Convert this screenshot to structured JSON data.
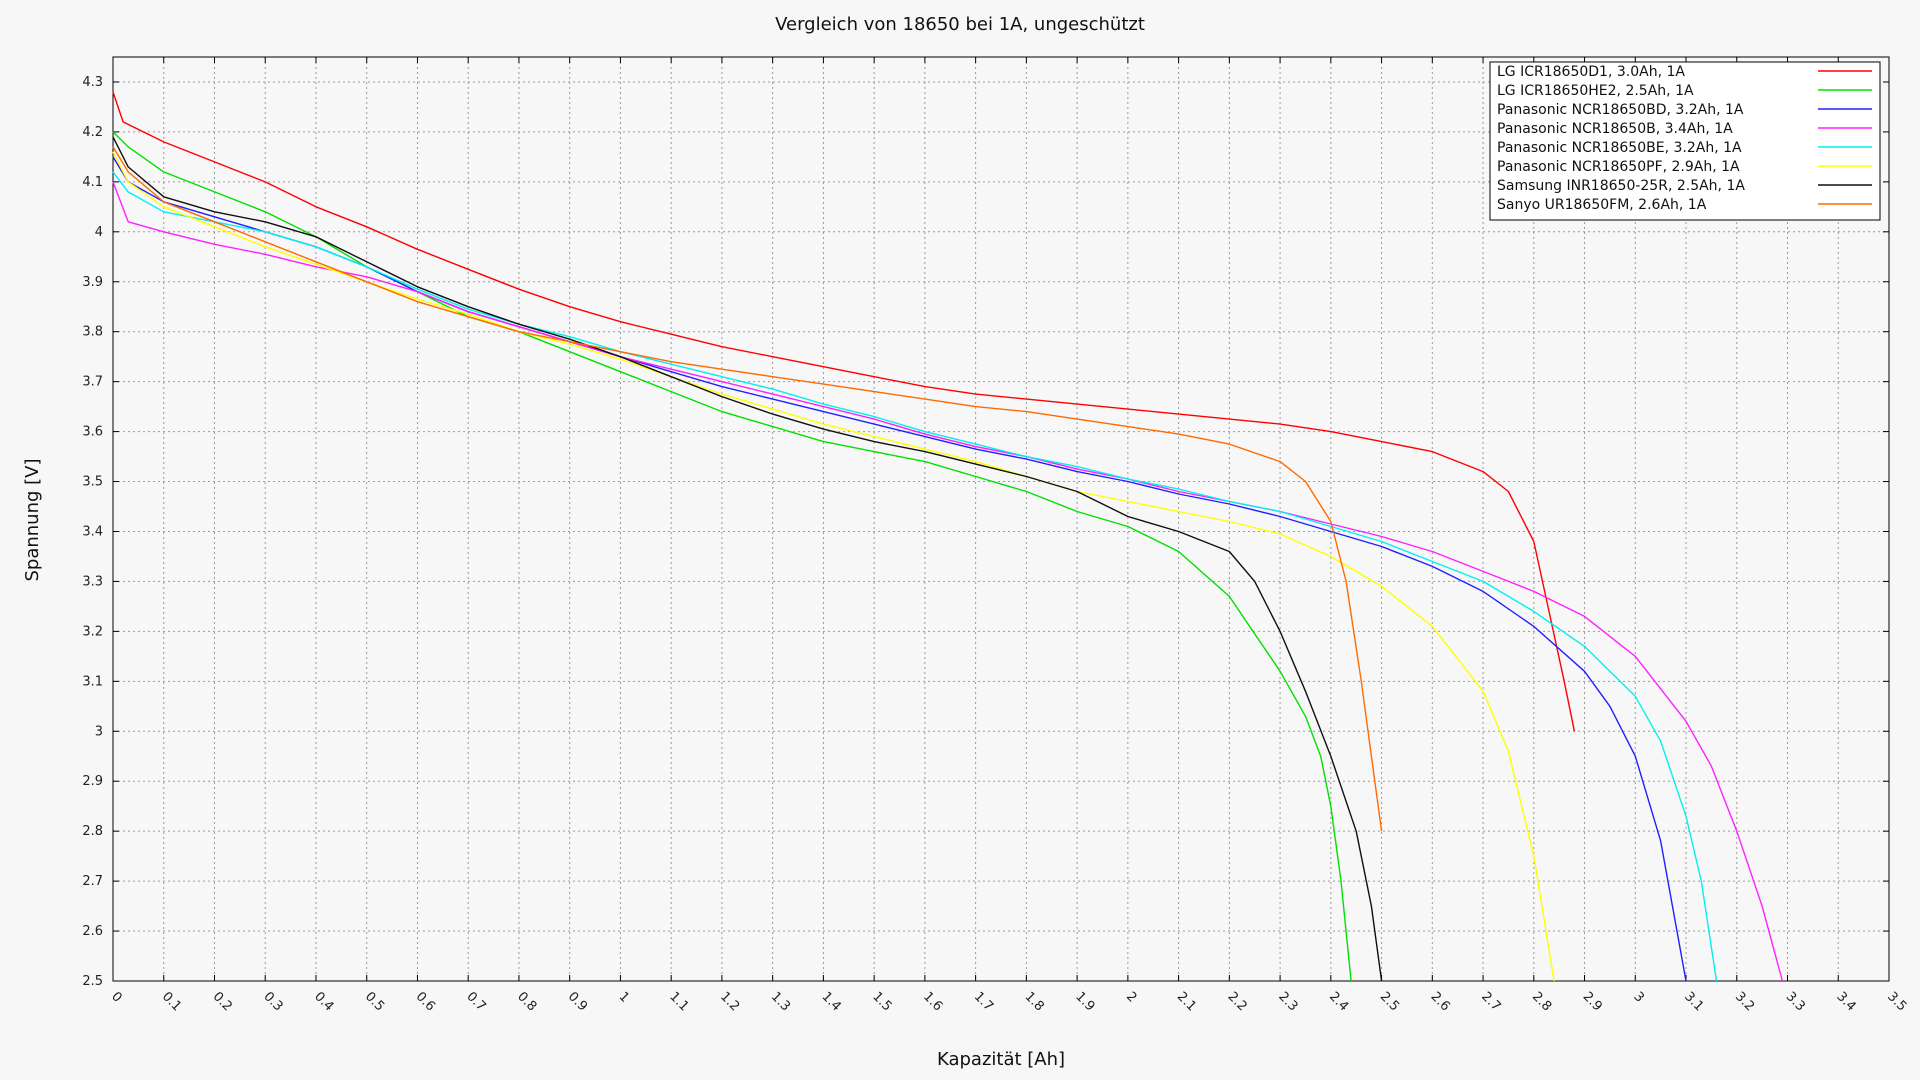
{
  "chart_data": {
    "type": "line",
    "title": "Vergleich von 18650 bei 1A, ungeschützt",
    "xlabel": "Kapazität [Ah]",
    "ylabel": "Spannung [V]",
    "xlim": [
      0,
      3.5
    ],
    "ylim": [
      2.5,
      4.35
    ],
    "x_ticks": [
      "0",
      "0.1",
      "0.2",
      "0.3",
      "0.4",
      "0.5",
      "0.6",
      "0.7",
      "0.8",
      "0.9",
      "1",
      "1.1",
      "1.2",
      "1.3",
      "1.4",
      "1.5",
      "1.6",
      "1.7",
      "1.8",
      "1.9",
      "2",
      "2.1",
      "2.2",
      "2.3",
      "2.4",
      "2.5",
      "2.6",
      "2.7",
      "2.8",
      "2.9",
      "3",
      "3.1",
      "3.2",
      "3.3",
      "3.4",
      "3.5"
    ],
    "y_ticks": [
      "2.5",
      "2.6",
      "2.7",
      "2.8",
      "2.9",
      "3",
      "3.1",
      "3.2",
      "3.3",
      "3.4",
      "3.5",
      "3.6",
      "3.7",
      "3.8",
      "3.9",
      "4",
      "4.1",
      "4.2",
      "4.3"
    ],
    "grid": true,
    "legend_position": "top-right",
    "series": [
      {
        "name": "LG ICR18650D1, 3.0Ah, 1A",
        "color": "#ff0000",
        "points": [
          [
            0,
            4.28
          ],
          [
            0.02,
            4.22
          ],
          [
            0.1,
            4.18
          ],
          [
            0.2,
            4.14
          ],
          [
            0.3,
            4.1
          ],
          [
            0.4,
            4.05
          ],
          [
            0.5,
            4.01
          ],
          [
            0.6,
            3.965
          ],
          [
            0.7,
            3.925
          ],
          [
            0.8,
            3.885
          ],
          [
            0.9,
            3.85
          ],
          [
            1.0,
            3.82
          ],
          [
            1.1,
            3.795
          ],
          [
            1.2,
            3.77
          ],
          [
            1.3,
            3.75
          ],
          [
            1.4,
            3.73
          ],
          [
            1.5,
            3.71
          ],
          [
            1.6,
            3.69
          ],
          [
            1.7,
            3.675
          ],
          [
            1.8,
            3.665
          ],
          [
            1.9,
            3.655
          ],
          [
            2.0,
            3.645
          ],
          [
            2.1,
            3.635
          ],
          [
            2.2,
            3.625
          ],
          [
            2.3,
            3.615
          ],
          [
            2.4,
            3.6
          ],
          [
            2.5,
            3.58
          ],
          [
            2.6,
            3.56
          ],
          [
            2.7,
            3.52
          ],
          [
            2.75,
            3.48
          ],
          [
            2.8,
            3.38
          ],
          [
            2.83,
            3.24
          ],
          [
            2.86,
            3.1
          ],
          [
            2.88,
            3.0
          ]
        ]
      },
      {
        "name": "LG ICR18650HE2, 2.5Ah, 1A",
        "color": "#00e000",
        "points": [
          [
            0,
            4.2
          ],
          [
            0.03,
            4.17
          ],
          [
            0.1,
            4.12
          ],
          [
            0.2,
            4.08
          ],
          [
            0.3,
            4.04
          ],
          [
            0.4,
            3.99
          ],
          [
            0.5,
            3.93
          ],
          [
            0.6,
            3.88
          ],
          [
            0.7,
            3.83
          ],
          [
            0.8,
            3.8
          ],
          [
            0.9,
            3.76
          ],
          [
            1.0,
            3.72
          ],
          [
            1.1,
            3.68
          ],
          [
            1.2,
            3.64
          ],
          [
            1.3,
            3.61
          ],
          [
            1.4,
            3.58
          ],
          [
            1.5,
            3.56
          ],
          [
            1.6,
            3.54
          ],
          [
            1.7,
            3.51
          ],
          [
            1.8,
            3.48
          ],
          [
            1.9,
            3.44
          ],
          [
            2.0,
            3.41
          ],
          [
            2.1,
            3.36
          ],
          [
            2.2,
            3.27
          ],
          [
            2.3,
            3.12
          ],
          [
            2.35,
            3.03
          ],
          [
            2.38,
            2.95
          ],
          [
            2.4,
            2.85
          ],
          [
            2.42,
            2.7
          ],
          [
            2.44,
            2.5
          ]
        ]
      },
      {
        "name": "Panasonic NCR18650BD, 3.2Ah, 1A",
        "color": "#2020ff",
        "points": [
          [
            0,
            4.15
          ],
          [
            0.03,
            4.1
          ],
          [
            0.1,
            4.06
          ],
          [
            0.2,
            4.03
          ],
          [
            0.3,
            4.0
          ],
          [
            0.4,
            3.97
          ],
          [
            0.5,
            3.93
          ],
          [
            0.6,
            3.88
          ],
          [
            0.7,
            3.84
          ],
          [
            0.8,
            3.81
          ],
          [
            0.9,
            3.78
          ],
          [
            1.0,
            3.75
          ],
          [
            1.1,
            3.72
          ],
          [
            1.2,
            3.69
          ],
          [
            1.3,
            3.665
          ],
          [
            1.4,
            3.64
          ],
          [
            1.5,
            3.615
          ],
          [
            1.6,
            3.59
          ],
          [
            1.7,
            3.565
          ],
          [
            1.8,
            3.545
          ],
          [
            1.9,
            3.52
          ],
          [
            2.0,
            3.5
          ],
          [
            2.1,
            3.475
          ],
          [
            2.2,
            3.455
          ],
          [
            2.3,
            3.43
          ],
          [
            2.4,
            3.4
          ],
          [
            2.5,
            3.37
          ],
          [
            2.6,
            3.33
          ],
          [
            2.7,
            3.28
          ],
          [
            2.8,
            3.21
          ],
          [
            2.9,
            3.12
          ],
          [
            2.95,
            3.05
          ],
          [
            3.0,
            2.95
          ],
          [
            3.05,
            2.78
          ],
          [
            3.1,
            2.5
          ]
        ]
      },
      {
        "name": "Panasonic NCR18650B, 3.4Ah, 1A",
        "color": "#ff20ff",
        "points": [
          [
            0,
            4.1
          ],
          [
            0.03,
            4.02
          ],
          [
            0.1,
            4.0
          ],
          [
            0.2,
            3.975
          ],
          [
            0.3,
            3.955
          ],
          [
            0.4,
            3.93
          ],
          [
            0.5,
            3.91
          ],
          [
            0.6,
            3.88
          ],
          [
            0.7,
            3.84
          ],
          [
            0.8,
            3.81
          ],
          [
            0.9,
            3.78
          ],
          [
            1.0,
            3.75
          ],
          [
            1.1,
            3.725
          ],
          [
            1.2,
            3.7
          ],
          [
            1.3,
            3.675
          ],
          [
            1.4,
            3.65
          ],
          [
            1.5,
            3.625
          ],
          [
            1.6,
            3.595
          ],
          [
            1.7,
            3.57
          ],
          [
            1.8,
            3.55
          ],
          [
            1.9,
            3.525
          ],
          [
            2.0,
            3.505
          ],
          [
            2.1,
            3.48
          ],
          [
            2.2,
            3.46
          ],
          [
            2.3,
            3.44
          ],
          [
            2.4,
            3.415
          ],
          [
            2.5,
            3.39
          ],
          [
            2.6,
            3.36
          ],
          [
            2.7,
            3.32
          ],
          [
            2.8,
            3.28
          ],
          [
            2.9,
            3.23
          ],
          [
            3.0,
            3.15
          ],
          [
            3.1,
            3.02
          ],
          [
            3.15,
            2.93
          ],
          [
            3.2,
            2.8
          ],
          [
            3.25,
            2.65
          ],
          [
            3.29,
            2.5
          ]
        ]
      },
      {
        "name": "Panasonic NCR18650BE, 3.2Ah, 1A",
        "color": "#00f0f0",
        "points": [
          [
            0,
            4.12
          ],
          [
            0.03,
            4.08
          ],
          [
            0.1,
            4.04
          ],
          [
            0.2,
            4.02
          ],
          [
            0.3,
            4.0
          ],
          [
            0.4,
            3.97
          ],
          [
            0.5,
            3.93
          ],
          [
            0.6,
            3.885
          ],
          [
            0.7,
            3.845
          ],
          [
            0.8,
            3.815
          ],
          [
            0.9,
            3.79
          ],
          [
            1.0,
            3.76
          ],
          [
            1.1,
            3.735
          ],
          [
            1.2,
            3.71
          ],
          [
            1.3,
            3.685
          ],
          [
            1.4,
            3.655
          ],
          [
            1.5,
            3.63
          ],
          [
            1.6,
            3.6
          ],
          [
            1.7,
            3.575
          ],
          [
            1.8,
            3.55
          ],
          [
            1.9,
            3.53
          ],
          [
            2.0,
            3.505
          ],
          [
            2.1,
            3.485
          ],
          [
            2.2,
            3.46
          ],
          [
            2.3,
            3.44
          ],
          [
            2.4,
            3.41
          ],
          [
            2.5,
            3.38
          ],
          [
            2.6,
            3.34
          ],
          [
            2.7,
            3.3
          ],
          [
            2.8,
            3.24
          ],
          [
            2.9,
            3.17
          ],
          [
            3.0,
            3.07
          ],
          [
            3.05,
            2.98
          ],
          [
            3.1,
            2.83
          ],
          [
            3.13,
            2.7
          ],
          [
            3.16,
            2.5
          ]
        ]
      },
      {
        "name": "Panasonic NCR18650PF, 2.9Ah, 1A",
        "color": "#ffff00",
        "points": [
          [
            0,
            4.16
          ],
          [
            0.03,
            4.1
          ],
          [
            0.1,
            4.05
          ],
          [
            0.2,
            4.01
          ],
          [
            0.3,
            3.97
          ],
          [
            0.4,
            3.935
          ],
          [
            0.5,
            3.9
          ],
          [
            0.6,
            3.865
          ],
          [
            0.7,
            3.835
          ],
          [
            0.8,
            3.8
          ],
          [
            0.9,
            3.775
          ],
          [
            1.0,
            3.745
          ],
          [
            1.1,
            3.71
          ],
          [
            1.2,
            3.675
          ],
          [
            1.3,
            3.645
          ],
          [
            1.4,
            3.615
          ],
          [
            1.5,
            3.59
          ],
          [
            1.6,
            3.565
          ],
          [
            1.7,
            3.54
          ],
          [
            1.8,
            3.51
          ],
          [
            1.9,
            3.48
          ],
          [
            2.0,
            3.46
          ],
          [
            2.1,
            3.44
          ],
          [
            2.2,
            3.42
          ],
          [
            2.3,
            3.395
          ],
          [
            2.4,
            3.35
          ],
          [
            2.5,
            3.29
          ],
          [
            2.6,
            3.21
          ],
          [
            2.7,
            3.08
          ],
          [
            2.75,
            2.96
          ],
          [
            2.8,
            2.75
          ],
          [
            2.84,
            2.5
          ]
        ]
      },
      {
        "name": "Samsung INR18650-25R, 2.5Ah, 1A",
        "color": "#101010",
        "points": [
          [
            0,
            4.19
          ],
          [
            0.03,
            4.13
          ],
          [
            0.1,
            4.07
          ],
          [
            0.2,
            4.04
          ],
          [
            0.3,
            4.02
          ],
          [
            0.4,
            3.99
          ],
          [
            0.5,
            3.94
          ],
          [
            0.6,
            3.89
          ],
          [
            0.7,
            3.85
          ],
          [
            0.8,
            3.815
          ],
          [
            0.9,
            3.785
          ],
          [
            1.0,
            3.75
          ],
          [
            1.1,
            3.71
          ],
          [
            1.2,
            3.67
          ],
          [
            1.3,
            3.635
          ],
          [
            1.4,
            3.605
          ],
          [
            1.5,
            3.58
          ],
          [
            1.6,
            3.56
          ],
          [
            1.7,
            3.535
          ],
          [
            1.8,
            3.51
          ],
          [
            1.9,
            3.48
          ],
          [
            2.0,
            3.43
          ],
          [
            2.1,
            3.4
          ],
          [
            2.2,
            3.36
          ],
          [
            2.25,
            3.3
          ],
          [
            2.3,
            3.2
          ],
          [
            2.35,
            3.08
          ],
          [
            2.4,
            2.95
          ],
          [
            2.45,
            2.8
          ],
          [
            2.48,
            2.65
          ],
          [
            2.5,
            2.5
          ]
        ]
      },
      {
        "name": "Sanyo UR18650FM, 2.6Ah, 1A",
        "color": "#ff6a00",
        "points": [
          [
            0,
            4.17
          ],
          [
            0.03,
            4.12
          ],
          [
            0.1,
            4.06
          ],
          [
            0.2,
            4.02
          ],
          [
            0.3,
            3.98
          ],
          [
            0.4,
            3.94
          ],
          [
            0.5,
            3.9
          ],
          [
            0.6,
            3.86
          ],
          [
            0.7,
            3.83
          ],
          [
            0.8,
            3.8
          ],
          [
            0.9,
            3.78
          ],
          [
            1.0,
            3.76
          ],
          [
            1.1,
            3.74
          ],
          [
            1.2,
            3.725
          ],
          [
            1.3,
            3.71
          ],
          [
            1.4,
            3.695
          ],
          [
            1.5,
            3.68
          ],
          [
            1.6,
            3.665
          ],
          [
            1.7,
            3.65
          ],
          [
            1.8,
            3.64
          ],
          [
            1.9,
            3.625
          ],
          [
            2.0,
            3.61
          ],
          [
            2.1,
            3.595
          ],
          [
            2.2,
            3.575
          ],
          [
            2.3,
            3.54
          ],
          [
            2.35,
            3.5
          ],
          [
            2.4,
            3.42
          ],
          [
            2.43,
            3.3
          ],
          [
            2.46,
            3.1
          ],
          [
            2.48,
            2.95
          ],
          [
            2.5,
            2.8
          ]
        ]
      }
    ]
  }
}
